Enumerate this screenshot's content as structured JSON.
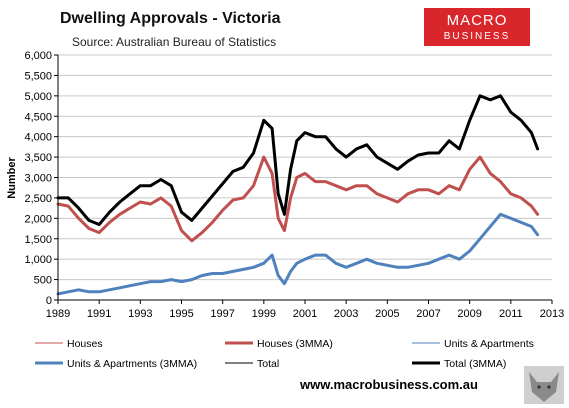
{
  "chart_data": {
    "type": "line",
    "title": "Dwelling Approvals - Victoria",
    "subtitle": "Source: Australian Bureau of Statistics",
    "ylabel": "Number",
    "xlim": [
      1989,
      2013
    ],
    "ylim": [
      0,
      6000
    ],
    "x_ticks": [
      1989,
      1991,
      1993,
      1995,
      1997,
      1999,
      2001,
      2003,
      2005,
      2007,
      2009,
      2011,
      2013
    ],
    "y_ticks": [
      0,
      500,
      1000,
      1500,
      2000,
      2500,
      3000,
      3500,
      4000,
      4500,
      5000,
      5500,
      6000
    ],
    "y_tick_labels": [
      "0",
      "500",
      "1,000",
      "1,500",
      "2,000",
      "2,500",
      "3,000",
      "3,500",
      "4,000",
      "4,500",
      "5,000",
      "5,500",
      "6,000"
    ],
    "grid": true,
    "legend_position": "bottom",
    "series": [
      {
        "name": "Houses",
        "color": "#c0504d",
        "width": 1,
        "kind": "raw",
        "x": [
          1989.0,
          1989.5,
          1990.0,
          1990.5,
          1991.0,
          1991.5,
          1992.0,
          1992.5,
          1993.0,
          1993.5,
          1994.0,
          1994.5,
          1995.0,
          1995.5,
          1996.0,
          1996.5,
          1997.0,
          1997.5,
          1998.0,
          1998.5,
          1999.0,
          1999.4,
          1999.7,
          2000.0,
          2000.3,
          2000.6,
          2001.0,
          2001.5,
          2002.0,
          2002.5,
          2003.0,
          2003.5,
          2004.0,
          2004.5,
          2005.0,
          2005.5,
          2006.0,
          2006.5,
          2007.0,
          2007.5,
          2008.0,
          2008.5,
          2009.0,
          2009.5,
          2010.0,
          2010.5,
          2011.0,
          2011.5,
          2012.0,
          2012.3
        ],
        "y": [
          2350,
          2300,
          2000,
          1750,
          1650,
          1900,
          2100,
          2250,
          2400,
          2350,
          2500,
          2300,
          1700,
          1450,
          1650,
          1900,
          2200,
          2450,
          2500,
          2800,
          3500,
          3100,
          2000,
          1700,
          2500,
          3000,
          3100,
          2900,
          2900,
          2800,
          2700,
          2800,
          2800,
          2600,
          2500,
          2400,
          2600,
          2700,
          2700,
          2600,
          2800,
          2700,
          3200,
          3500,
          3100,
          2900,
          2600,
          2500,
          2300,
          2100
        ]
      },
      {
        "name": "Houses (3MMA)",
        "color": "#c0504d",
        "width": 3,
        "kind": "mma",
        "x": [
          1989.0,
          1989.5,
          1990.0,
          1990.5,
          1991.0,
          1991.5,
          1992.0,
          1992.5,
          1993.0,
          1993.5,
          1994.0,
          1994.5,
          1995.0,
          1995.5,
          1996.0,
          1996.5,
          1997.0,
          1997.5,
          1998.0,
          1998.5,
          1999.0,
          1999.4,
          1999.7,
          2000.0,
          2000.3,
          2000.6,
          2001.0,
          2001.5,
          2002.0,
          2002.5,
          2003.0,
          2003.5,
          2004.0,
          2004.5,
          2005.0,
          2005.5,
          2006.0,
          2006.5,
          2007.0,
          2007.5,
          2008.0,
          2008.5,
          2009.0,
          2009.5,
          2010.0,
          2010.5,
          2011.0,
          2011.5,
          2012.0,
          2012.3
        ],
        "y": [
          2350,
          2300,
          2000,
          1750,
          1650,
          1900,
          2100,
          2250,
          2400,
          2350,
          2500,
          2300,
          1700,
          1450,
          1650,
          1900,
          2200,
          2450,
          2500,
          2800,
          3500,
          3100,
          2000,
          1700,
          2500,
          3000,
          3100,
          2900,
          2900,
          2800,
          2700,
          2800,
          2800,
          2600,
          2500,
          2400,
          2600,
          2700,
          2700,
          2600,
          2800,
          2700,
          3200,
          3500,
          3100,
          2900,
          2600,
          2500,
          2300,
          2100
        ]
      },
      {
        "name": "Units & Apartments",
        "color": "#4f81bd",
        "width": 1,
        "kind": "raw",
        "x": [
          1989.0,
          1989.5,
          1990.0,
          1990.5,
          1991.0,
          1991.5,
          1992.0,
          1992.5,
          1993.0,
          1993.5,
          1994.0,
          1994.5,
          1995.0,
          1995.5,
          1996.0,
          1996.5,
          1997.0,
          1997.5,
          1998.0,
          1998.5,
          1999.0,
          1999.4,
          1999.7,
          2000.0,
          2000.3,
          2000.6,
          2001.0,
          2001.5,
          2002.0,
          2002.5,
          2003.0,
          2003.5,
          2004.0,
          2004.5,
          2005.0,
          2005.5,
          2006.0,
          2006.5,
          2007.0,
          2007.5,
          2008.0,
          2008.5,
          2009.0,
          2009.5,
          2010.0,
          2010.5,
          2011.0,
          2011.5,
          2012.0,
          2012.3
        ],
        "y": [
          150,
          200,
          250,
          200,
          200,
          250,
          300,
          350,
          400,
          450,
          450,
          500,
          450,
          500,
          600,
          650,
          650,
          700,
          750,
          800,
          900,
          1100,
          600,
          400,
          700,
          900,
          1000,
          1100,
          1100,
          900,
          800,
          900,
          1000,
          900,
          850,
          800,
          800,
          850,
          900,
          1000,
          1100,
          1000,
          1200,
          1500,
          1800,
          2100,
          2000,
          1900,
          1800,
          1600
        ]
      },
      {
        "name": "Units & Apartments (3MMA)",
        "color": "#4f81bd",
        "width": 3,
        "kind": "mma",
        "x": [
          1989.0,
          1989.5,
          1990.0,
          1990.5,
          1991.0,
          1991.5,
          1992.0,
          1992.5,
          1993.0,
          1993.5,
          1994.0,
          1994.5,
          1995.0,
          1995.5,
          1996.0,
          1996.5,
          1997.0,
          1997.5,
          1998.0,
          1998.5,
          1999.0,
          1999.4,
          1999.7,
          2000.0,
          2000.3,
          2000.6,
          2001.0,
          2001.5,
          2002.0,
          2002.5,
          2003.0,
          2003.5,
          2004.0,
          2004.5,
          2005.0,
          2005.5,
          2006.0,
          2006.5,
          2007.0,
          2007.5,
          2008.0,
          2008.5,
          2009.0,
          2009.5,
          2010.0,
          2010.5,
          2011.0,
          2011.5,
          2012.0,
          2012.3
        ],
        "y": [
          150,
          200,
          250,
          200,
          200,
          250,
          300,
          350,
          400,
          450,
          450,
          500,
          450,
          500,
          600,
          650,
          650,
          700,
          750,
          800,
          900,
          1100,
          600,
          400,
          700,
          900,
          1000,
          1100,
          1100,
          900,
          800,
          900,
          1000,
          900,
          850,
          800,
          800,
          850,
          900,
          1000,
          1100,
          1000,
          1200,
          1500,
          1800,
          2100,
          2000,
          1900,
          1800,
          1600
        ]
      },
      {
        "name": "Total",
        "color": "#000000",
        "width": 1,
        "kind": "raw",
        "x": [
          1989.0,
          1989.5,
          1990.0,
          1990.5,
          1991.0,
          1991.5,
          1992.0,
          1992.5,
          1993.0,
          1993.5,
          1994.0,
          1994.5,
          1995.0,
          1995.5,
          1996.0,
          1996.5,
          1997.0,
          1997.5,
          1998.0,
          1998.5,
          1999.0,
          1999.4,
          1999.7,
          2000.0,
          2000.3,
          2000.6,
          2001.0,
          2001.5,
          2002.0,
          2002.5,
          2003.0,
          2003.5,
          2004.0,
          2004.5,
          2005.0,
          2005.5,
          2006.0,
          2006.5,
          2007.0,
          2007.5,
          2008.0,
          2008.5,
          2009.0,
          2009.5,
          2010.0,
          2010.5,
          2011.0,
          2011.5,
          2012.0,
          2012.3
        ],
        "y": [
          2500,
          2500,
          2250,
          1950,
          1850,
          2150,
          2400,
          2600,
          2800,
          2800,
          2950,
          2800,
          2150,
          1950,
          2250,
          2550,
          2850,
          3150,
          3250,
          3600,
          4400,
          4200,
          2600,
          2100,
          3200,
          3900,
          4100,
          4000,
          4000,
          3700,
          3500,
          3700,
          3800,
          3500,
          3350,
          3200,
          3400,
          3550,
          3600,
          3600,
          3900,
          3700,
          4400,
          5000,
          4900,
          5000,
          4600,
          4400,
          4100,
          3700
        ]
      },
      {
        "name": "Total (3MMA)",
        "color": "#000000",
        "width": 3,
        "kind": "mma",
        "x": [
          1989.0,
          1989.5,
          1990.0,
          1990.5,
          1991.0,
          1991.5,
          1992.0,
          1992.5,
          1993.0,
          1993.5,
          1994.0,
          1994.5,
          1995.0,
          1995.5,
          1996.0,
          1996.5,
          1997.0,
          1997.5,
          1998.0,
          1998.5,
          1999.0,
          1999.4,
          1999.7,
          2000.0,
          2000.3,
          2000.6,
          2001.0,
          2001.5,
          2002.0,
          2002.5,
          2003.0,
          2003.5,
          2004.0,
          2004.5,
          2005.0,
          2005.5,
          2006.0,
          2006.5,
          2007.0,
          2007.5,
          2008.0,
          2008.5,
          2009.0,
          2009.5,
          2010.0,
          2010.5,
          2011.0,
          2011.5,
          2012.0,
          2012.3
        ],
        "y": [
          2500,
          2500,
          2250,
          1950,
          1850,
          2150,
          2400,
          2600,
          2800,
          2800,
          2950,
          2800,
          2150,
          1950,
          2250,
          2550,
          2850,
          3150,
          3250,
          3600,
          4400,
          4200,
          2600,
          2100,
          3200,
          3900,
          4100,
          4000,
          4000,
          3700,
          3500,
          3700,
          3800,
          3500,
          3350,
          3200,
          3400,
          3550,
          3600,
          3600,
          3900,
          3700,
          4400,
          5000,
          4900,
          5000,
          4600,
          4400,
          4100,
          3700
        ]
      }
    ]
  },
  "branding": {
    "logo_line1": "MACRO",
    "logo_line2": "BUSINESS",
    "logo_bg": "#d9262b",
    "website": "www.macrobusiness.com.au"
  }
}
